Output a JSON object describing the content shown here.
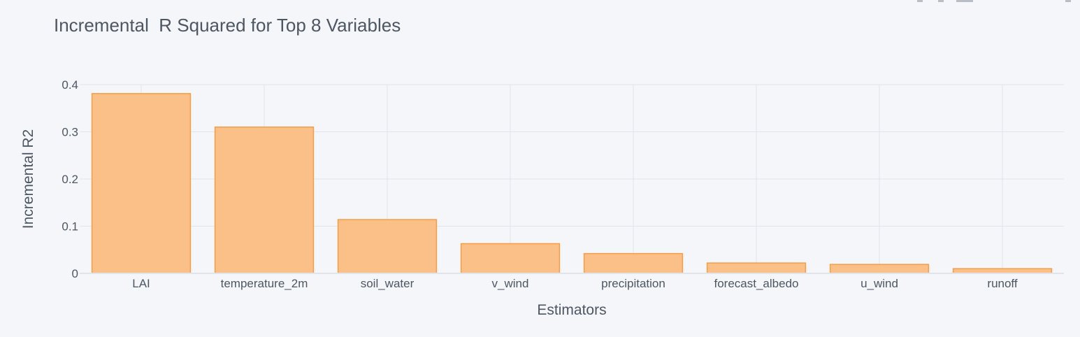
{
  "chart_data": {
    "type": "bar",
    "title": "Incremental  R Squared for Top 8 Variables",
    "xlabel": "Estimators",
    "ylabel": "Incremental R2",
    "categories": [
      "LAI",
      "temperature_2m",
      "soil_water",
      "v_wind",
      "precipitation",
      "forecast_albedo",
      "u_wind",
      "runoff"
    ],
    "values": [
      0.381,
      0.31,
      0.114,
      0.063,
      0.042,
      0.022,
      0.019,
      0.01
    ],
    "ylim": [
      0,
      0.4
    ],
    "yticks": [
      0,
      0.1,
      0.2,
      0.3,
      0.4
    ],
    "ytick_labels": [
      "0",
      "0.1",
      "0.2",
      "0.3",
      "0.4"
    ],
    "grid": true,
    "legend": "none",
    "colors": {
      "bar_fill": "#fabd82",
      "bar_stroke": "#f59e47",
      "background": "#f5f6f9",
      "grid": "#e2e4ea",
      "text": "#4d5663"
    }
  }
}
